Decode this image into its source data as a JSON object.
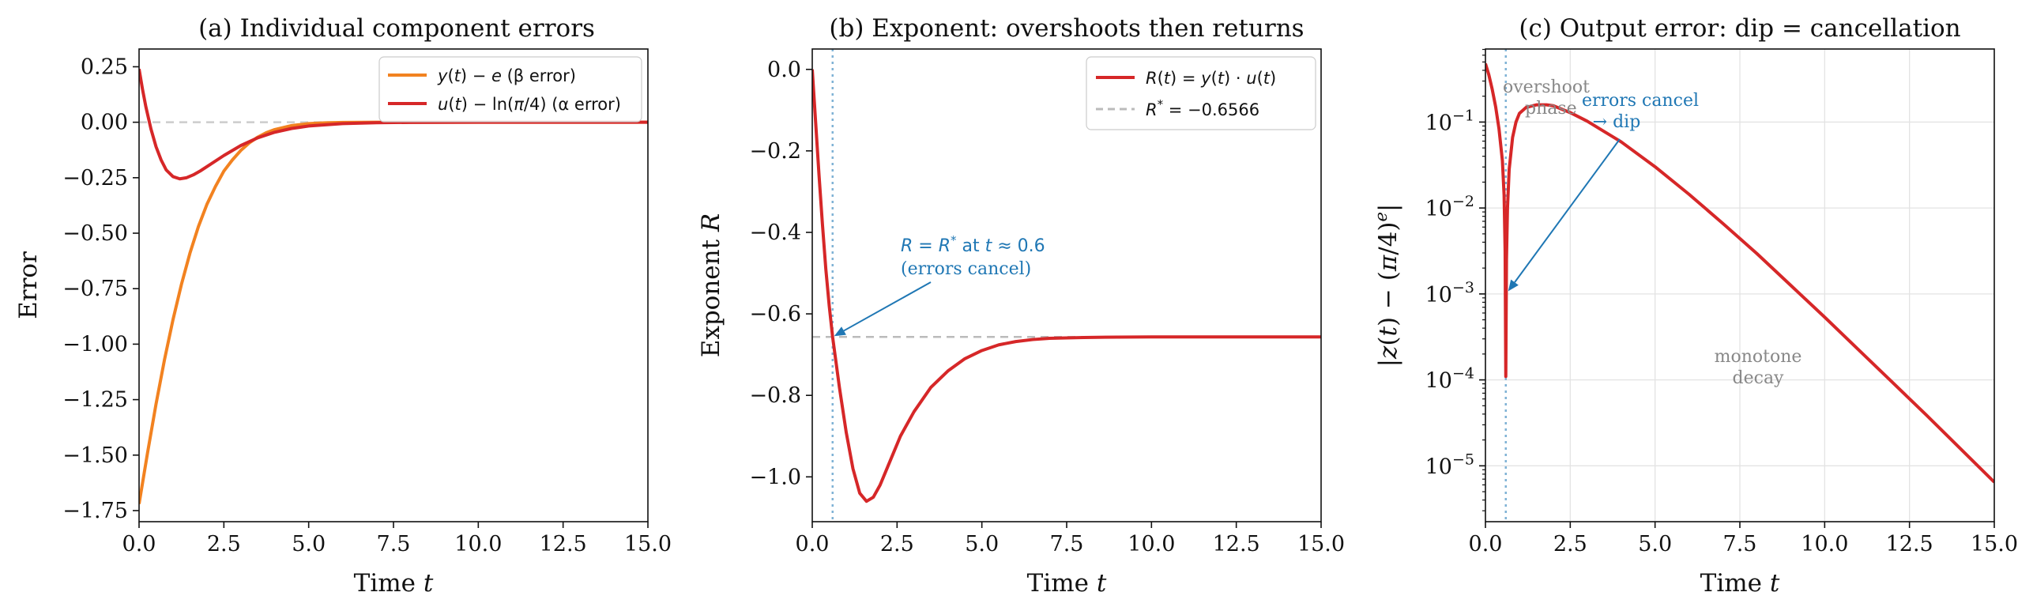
{
  "figure": {
    "background": "#ffffff"
  },
  "chart_data": [
    {
      "type": "line",
      "title": "(a) Individual component errors",
      "xlabel": "Time t",
      "ylabel": "Error",
      "xlim": [
        0,
        15
      ],
      "ylim": [
        -1.8,
        0.33
      ],
      "xticks": [
        0,
        2.5,
        5,
        7.5,
        10,
        12.5,
        15
      ],
      "xtick_labels": [
        "0.0",
        "2.5",
        "5.0",
        "7.5",
        "10.0",
        "12.5",
        "15.0"
      ],
      "yticks": [
        0.25,
        0,
        -0.25,
        -0.5,
        -0.75,
        -1.0,
        -1.25,
        -1.5,
        -1.75
      ],
      "ytick_labels": [
        "0.25",
        "0.00",
        "−0.25",
        "−0.50",
        "−0.75",
        "−1.00",
        "−1.25",
        "−1.50",
        "−1.75"
      ],
      "grid": false,
      "legend": "top-right",
      "reference_lines": [
        {
          "orientation": "horizontal",
          "y": 0,
          "color": "#cccccc",
          "style": "dashed"
        }
      ],
      "series": [
        {
          "name": "y(t) − e (β error)",
          "color": "#f28220",
          "x": [
            0,
            0.25,
            0.5,
            0.75,
            1.0,
            1.25,
            1.5,
            1.75,
            2.0,
            2.25,
            2.5,
            2.75,
            3.0,
            3.25,
            3.5,
            3.75,
            4.0,
            4.5,
            5.0,
            5.5,
            6.0,
            6.5,
            7.0,
            8.0,
            9.0,
            10.0,
            12.0,
            15.0
          ],
          "y": [
            -1.72,
            -1.49,
            -1.27,
            -1.07,
            -0.89,
            -0.73,
            -0.59,
            -0.47,
            -0.37,
            -0.29,
            -0.22,
            -0.17,
            -0.127,
            -0.093,
            -0.067,
            -0.047,
            -0.033,
            -0.015,
            -0.0062,
            -0.0024,
            -0.0009,
            -0.0003,
            -0.0001,
            0,
            0,
            0,
            0,
            0
          ]
        },
        {
          "name": "u(t) − ln(π/4) (α error)",
          "color": "#d62728",
          "x": [
            0,
            0.1,
            0.2,
            0.35,
            0.5,
            0.65,
            0.8,
            1.0,
            1.2,
            1.4,
            1.6,
            1.8,
            2.0,
            2.5,
            3.0,
            3.5,
            4.0,
            4.5,
            5.0,
            6.0,
            7.0,
            8.0,
            10.0,
            12.0,
            15.0
          ],
          "y": [
            0.24,
            0.15,
            0.07,
            -0.03,
            -0.11,
            -0.17,
            -0.215,
            -0.245,
            -0.255,
            -0.25,
            -0.237,
            -0.22,
            -0.2,
            -0.15,
            -0.105,
            -0.07,
            -0.045,
            -0.028,
            -0.017,
            -0.006,
            -0.002,
            -0.0007,
            0,
            0,
            0
          ]
        }
      ]
    },
    {
      "type": "line",
      "title": "(b) Exponent: overshoots then returns",
      "xlabel": "Time t",
      "ylabel": "Exponent R",
      "xlim": [
        0,
        15
      ],
      "ylim": [
        -1.11,
        0.05
      ],
      "xticks": [
        0,
        2.5,
        5,
        7.5,
        10,
        12.5,
        15
      ],
      "xtick_labels": [
        "0.0",
        "2.5",
        "5.0",
        "7.5",
        "10.0",
        "12.5",
        "15.0"
      ],
      "yticks": [
        0,
        -0.2,
        -0.4,
        -0.6,
        -0.8,
        -1.0
      ],
      "ytick_labels": [
        "0.0",
        "−0.2",
        "−0.4",
        "−0.6",
        "−0.8",
        "−1.0"
      ],
      "grid": false,
      "legend": "top-right",
      "reference_lines": [
        {
          "orientation": "horizontal",
          "y": -0.6566,
          "color": "#bbbbbb",
          "style": "dashed",
          "label": "R* = −0.6566"
        },
        {
          "orientation": "vertical",
          "x": 0.6,
          "color": "#7fb2d5",
          "style": "dotted"
        }
      ],
      "series": [
        {
          "name": "R(t) = y(t) · u(t)",
          "color": "#d62728",
          "x": [
            0,
            0.1,
            0.2,
            0.3,
            0.4,
            0.5,
            0.6,
            0.8,
            1.0,
            1.2,
            1.4,
            1.6,
            1.8,
            2.0,
            2.3,
            2.6,
            3.0,
            3.5,
            4.0,
            4.5,
            5.0,
            5.5,
            6.0,
            6.5,
            7.0,
            8.0,
            9.0,
            10.0,
            12.0,
            15.0
          ],
          "y": [
            0,
            -0.13,
            -0.26,
            -0.38,
            -0.49,
            -0.58,
            -0.6566,
            -0.78,
            -0.89,
            -0.98,
            -1.04,
            -1.06,
            -1.05,
            -1.02,
            -0.96,
            -0.9,
            -0.84,
            -0.78,
            -0.74,
            -0.71,
            -0.69,
            -0.676,
            -0.668,
            -0.663,
            -0.66,
            -0.658,
            -0.657,
            -0.6566,
            -0.6566,
            -0.6566
          ]
        }
      ],
      "annotations": [
        {
          "text_parts": [
            "R = R",
            "*",
            " at t ≈ 0.6"
          ],
          "text2": "(errors cancel)",
          "color": "#1f77b4",
          "point": [
            0.6,
            -0.6566
          ],
          "text_at": [
            2.6,
            -0.46
          ]
        }
      ]
    },
    {
      "type": "line",
      "title": "(c) Output error: dip = cancellation",
      "xlabel": "|z(t) − (π/4)^e|",
      "ylabel_parts": [
        "|z(t) − (π/4)",
        "e",
        "|"
      ],
      "xaxis_label": "Time t",
      "yscale": "log",
      "xlim": [
        0,
        15
      ],
      "ylim_log10": [
        -5.65,
        -0.15
      ],
      "xticks": [
        0,
        2.5,
        5,
        7.5,
        10,
        12.5,
        15
      ],
      "xtick_labels": [
        "0.0",
        "2.5",
        "5.0",
        "7.5",
        "10.0",
        "12.5",
        "15.0"
      ],
      "yticks_log10": [
        -1,
        -2,
        -3,
        -4,
        -5
      ],
      "ytick_base": "10",
      "ytick_exponents": [
        "−1",
        "−2",
        "−3",
        "−4",
        "−5"
      ],
      "grid": true,
      "reference_lines": [
        {
          "orientation": "vertical",
          "x": 0.6,
          "color": "#7fb2d5",
          "style": "dotted"
        }
      ],
      "series": [
        {
          "name": "",
          "color": "#d62728",
          "x": [
            0,
            0.1,
            0.2,
            0.3,
            0.4,
            0.5,
            0.55,
            0.58,
            0.6,
            0.62,
            0.65,
            0.7,
            0.8,
            0.9,
            1.0,
            1.2,
            1.5,
            1.8,
            2.0,
            2.5,
            3.0,
            4.0,
            5.0,
            6.0,
            7.0,
            8.0,
            9.0,
            10.0,
            11.0,
            12.0,
            13.0,
            14.0,
            15.0
          ],
          "log10_y": [
            -0.32,
            -0.45,
            -0.62,
            -0.82,
            -1.08,
            -1.45,
            -1.85,
            -2.5,
            -3.96,
            -2.6,
            -2.0,
            -1.55,
            -1.18,
            -1.0,
            -0.9,
            -0.83,
            -0.8,
            -0.8,
            -0.81,
            -0.89,
            -0.99,
            -1.23,
            -1.52,
            -1.84,
            -2.18,
            -2.53,
            -2.9,
            -3.27,
            -3.65,
            -4.03,
            -4.41,
            -4.8,
            -5.19
          ]
        }
      ],
      "annotations": [
        {
          "text": "overshoot",
          "text2": "phase",
          "color": "#888888"
        },
        {
          "text": "errors cancel",
          "text2": "→ dip",
          "color": "#1f77b4",
          "point": [
            0.6,
            -2.95
          ]
        },
        {
          "text": "monotone",
          "text2": "decay",
          "color": "#888888"
        }
      ]
    }
  ]
}
